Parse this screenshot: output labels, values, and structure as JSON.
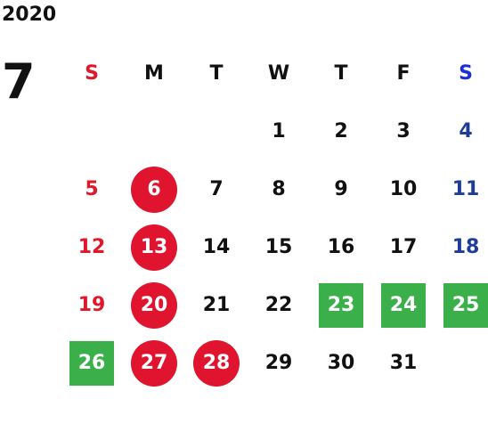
{
  "year": "2020",
  "month": "7",
  "weekdays": [
    "S",
    "M",
    "T",
    "W",
    "T",
    "F",
    "S"
  ],
  "colors": {
    "sunday": "#e0182a",
    "saturday": "#1e3d9a",
    "holiday_circle": "#e0142e",
    "event_square": "#3bb04a"
  },
  "days": [
    {
      "d": "1",
      "col": 3
    },
    {
      "d": "2",
      "col": 4
    },
    {
      "d": "3",
      "col": 5
    },
    {
      "d": "4",
      "col": 6
    },
    {
      "d": "5",
      "col": 0
    },
    {
      "d": "6",
      "col": 1,
      "mark": "circle"
    },
    {
      "d": "7",
      "col": 2
    },
    {
      "d": "8",
      "col": 3
    },
    {
      "d": "9",
      "col": 4
    },
    {
      "d": "10",
      "col": 5
    },
    {
      "d": "11",
      "col": 6
    },
    {
      "d": "12",
      "col": 0
    },
    {
      "d": "13",
      "col": 1,
      "mark": "circle"
    },
    {
      "d": "14",
      "col": 2
    },
    {
      "d": "15",
      "col": 3
    },
    {
      "d": "16",
      "col": 4
    },
    {
      "d": "17",
      "col": 5
    },
    {
      "d": "18",
      "col": 6
    },
    {
      "d": "19",
      "col": 0
    },
    {
      "d": "20",
      "col": 1,
      "mark": "circle"
    },
    {
      "d": "21",
      "col": 2
    },
    {
      "d": "22",
      "col": 3
    },
    {
      "d": "23",
      "col": 4,
      "mark": "square"
    },
    {
      "d": "24",
      "col": 5,
      "mark": "square"
    },
    {
      "d": "25",
      "col": 6,
      "mark": "square"
    },
    {
      "d": "26",
      "col": 0,
      "mark": "square"
    },
    {
      "d": "27",
      "col": 1,
      "mark": "circle"
    },
    {
      "d": "28",
      "col": 2,
      "mark": "circle"
    },
    {
      "d": "29",
      "col": 3
    },
    {
      "d": "30",
      "col": 4
    },
    {
      "d": "31",
      "col": 5
    }
  ]
}
